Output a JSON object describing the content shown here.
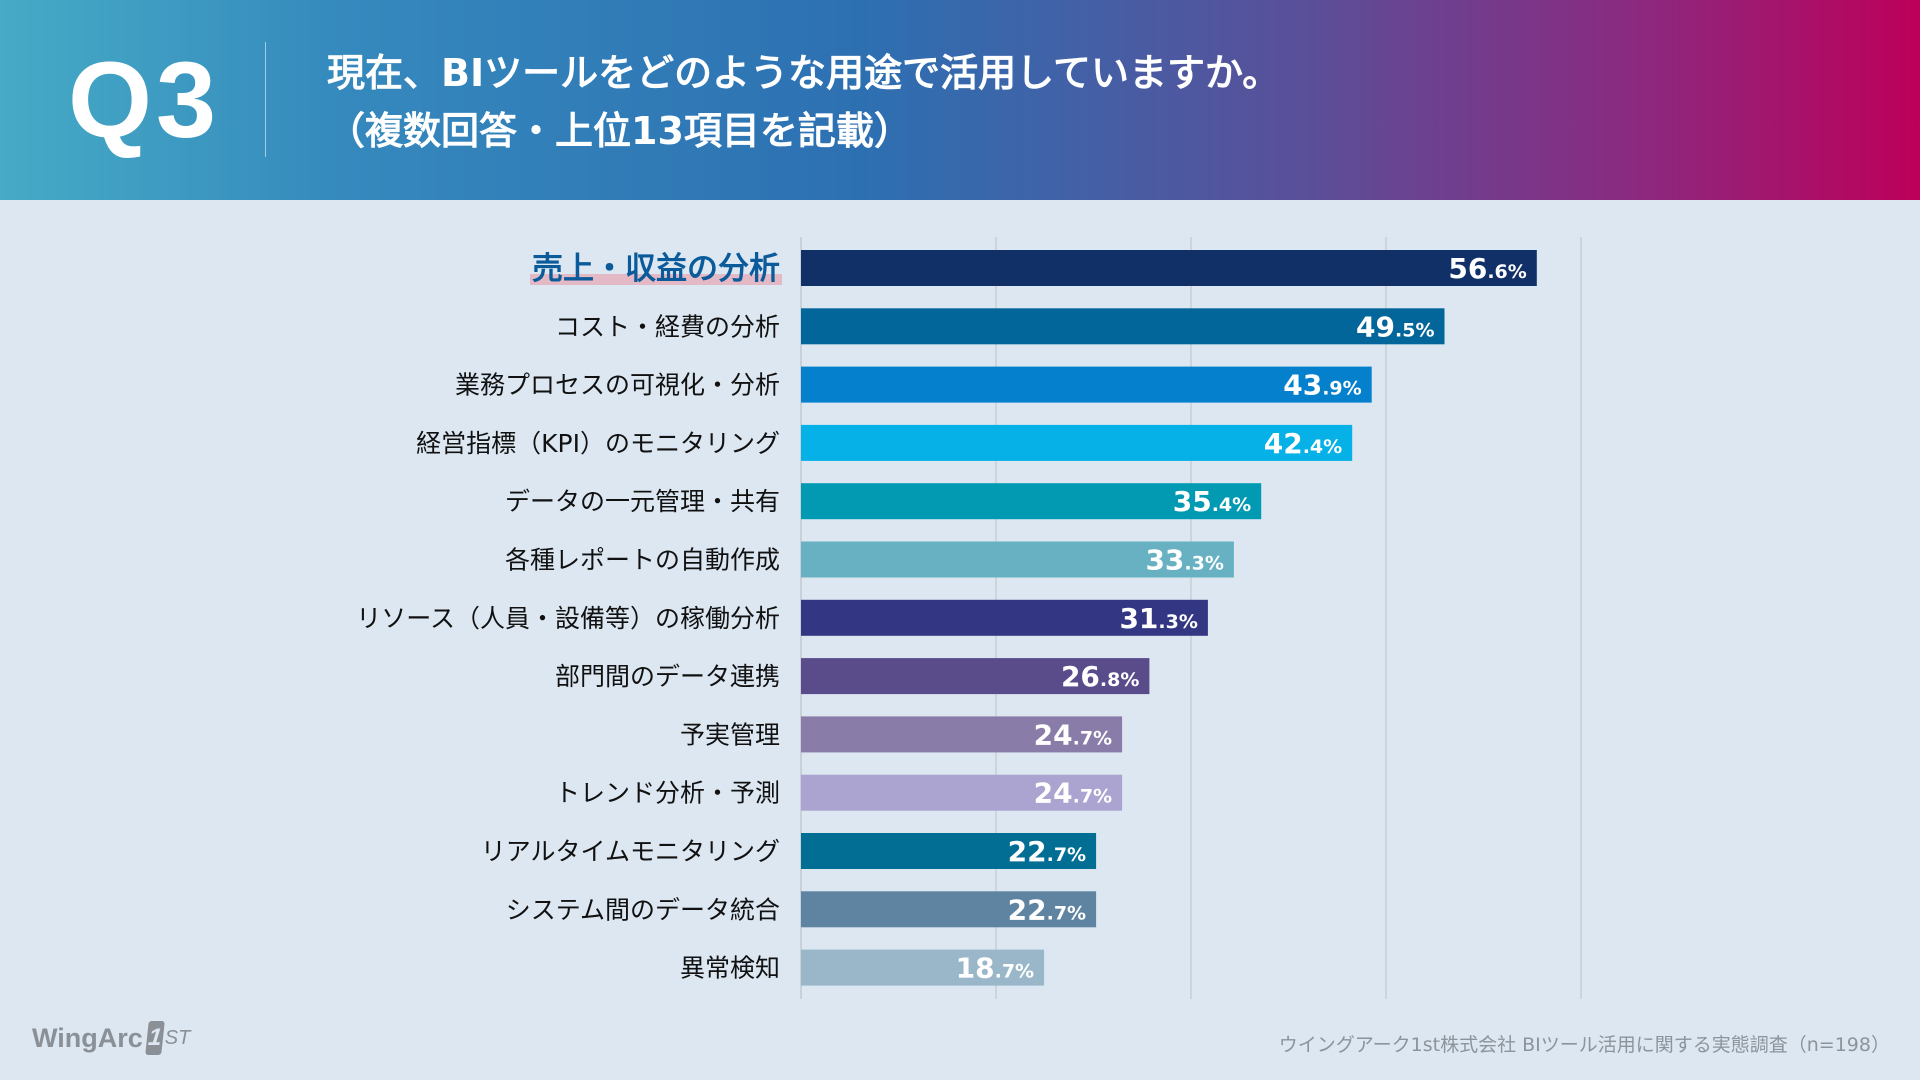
{
  "header": {
    "question_number": "Q3",
    "title_line1": "現在、BIツールをどのような用途で活用していますか。",
    "title_line2": "（複数回答・上位13項目を記載）"
  },
  "footer": {
    "logo_text": "WingArc",
    "logo_one": "1",
    "logo_st": "ST",
    "source": "ウイングアーク1st株式会社  BIツール活用に関する実態調査（n=198）"
  },
  "chart_data": {
    "type": "bar",
    "orientation": "horizontal",
    "title": "現在、BIツールをどのような用途で活用していますか。（複数回答・上位13項目を記載）",
    "xlabel": "",
    "ylabel": "",
    "unit": "%",
    "xlim": [
      0,
      60
    ],
    "gridlines": [
      0,
      15,
      30,
      45,
      60
    ],
    "grid": true,
    "highlighted_category": "売上・収益の分析",
    "categories": [
      "売上・収益の分析",
      "コスト・経費の分析",
      "業務プロセスの可視化・分析",
      "経営指標（KPI）のモニタリング",
      "データの一元管理・共有",
      "各種レポートの自動作成",
      "リソース（人員・設備等）の稼働分析",
      "部門間のデータ連携",
      "予実管理",
      "トレンド分析・予測",
      "リアルタイムモニタリング",
      "システム間のデータ統合",
      "異常検知"
    ],
    "values": [
      56.6,
      49.5,
      43.9,
      42.4,
      35.4,
      33.3,
      31.3,
      26.8,
      24.7,
      24.7,
      22.7,
      22.7,
      18.7
    ],
    "colors": [
      "#113068",
      "#03669a",
      "#0480cd",
      "#05b1e6",
      "#029ab2",
      "#68b1c3",
      "#333682",
      "#5a4b8b",
      "#8a7ca8",
      "#aca4d0",
      "#026e93",
      "#5f84a2",
      "#9ab7ca"
    ]
  }
}
